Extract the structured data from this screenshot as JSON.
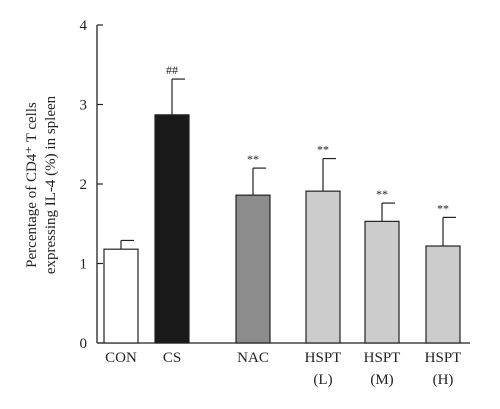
{
  "chart_data": {
    "type": "bar",
    "categories": [
      [
        "CON"
      ],
      [
        "CS"
      ],
      [
        "NAC"
      ],
      [
        "HSPT",
        "(L)"
      ],
      [
        "HSPT",
        "(M)"
      ],
      [
        "HSPT",
        "(H)"
      ]
    ],
    "values": [
      1.18,
      2.87,
      1.86,
      1.91,
      1.53,
      1.22
    ],
    "errors": [
      0.11,
      0.45,
      0.34,
      0.41,
      0.23,
      0.36
    ],
    "annotations": [
      "",
      "##",
      "**",
      "**",
      "**",
      "**"
    ],
    "bar_colors": [
      "#ffffff",
      "#1a1a1a",
      "#8c8c8c",
      "#cccccc",
      "#cccccc",
      "#cccccc"
    ],
    "ylabel_lines": [
      "Percentage of CD4⁺ T cells",
      "expressing IL-4 (%) in spleen"
    ],
    "ylim": [
      0,
      4
    ],
    "yticks": [
      "0",
      "1",
      "2",
      "3",
      "4"
    ],
    "grid": false
  }
}
